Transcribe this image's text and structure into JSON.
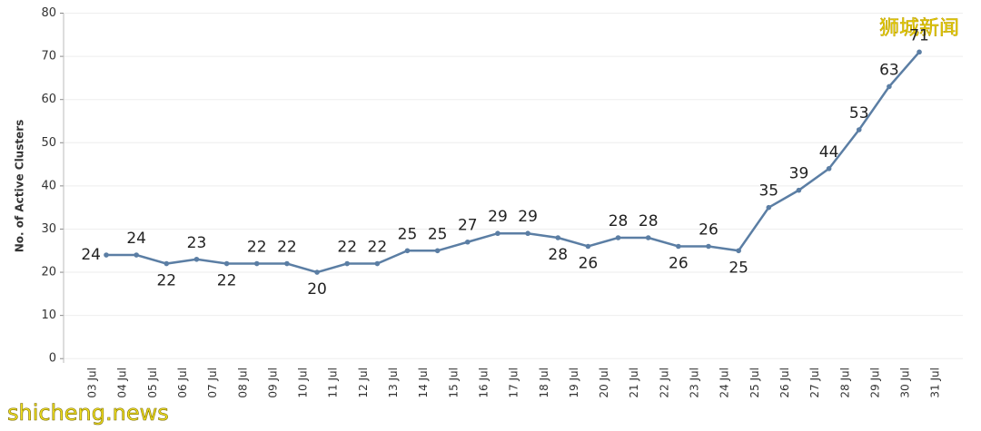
{
  "chart_data": {
    "type": "line",
    "y_label": "No. of Active Clusters",
    "watermarks": [
      "狮城新闻",
      "shicheng.news"
    ],
    "categories": [
      "03 Jul",
      "04 Jul",
      "05 Jul",
      "06 Jul",
      "07 Jul",
      "08 Jul",
      "09 Jul",
      "10 Jul",
      "11 Jul",
      "12 Jul",
      "13 Jul",
      "14 Jul",
      "15 Jul",
      "16 Jul",
      "17 Jul",
      "18 Jul",
      "19 Jul",
      "20 Jul",
      "21 Jul",
      "22 Jul",
      "23 Jul",
      "24 Jul",
      "25 Jul",
      "26 Jul",
      "27 Jul",
      "28 Jul",
      "29 Jul",
      "30 Jul",
      "31 Jul"
    ],
    "series": [
      {
        "name": "Active Clusters",
        "color": "#5b7ea4",
        "values": [
          24,
          24,
          22,
          23,
          22,
          22,
          22,
          20,
          22,
          22,
          25,
          25,
          27,
          29,
          29,
          28,
          26,
          28,
          28,
          26,
          26,
          25,
          35,
          39,
          44,
          53,
          63,
          71,
          null
        ]
      }
    ],
    "ylim": [
      -1,
      82
    ],
    "yticks": [
      0,
      10,
      20,
      30,
      40,
      50,
      60,
      70,
      80
    ],
    "grid": true
  }
}
